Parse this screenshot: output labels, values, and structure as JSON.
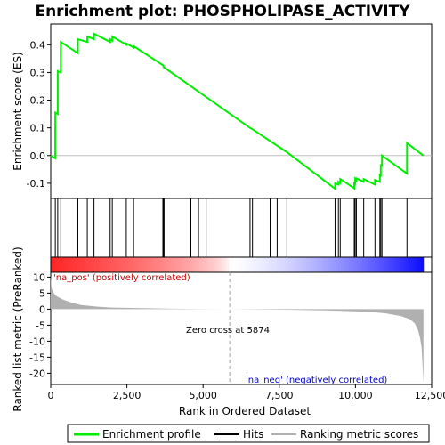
{
  "title": "Enrichment plot: PHOSPHOLIPASE_ACTIVITY",
  "colors": {
    "profile": "#00ee00",
    "hits": "#000000",
    "metric_fill": "#b0b0b0",
    "zero_line": "#a0a0a0",
    "pos_text": "#cc0000",
    "neg_text": "#0000cc",
    "heat_pos": "#ff0000",
    "heat_neg": "#0000ff"
  },
  "chart_data": [
    {
      "type": "line",
      "name": "enrichment-profile",
      "ylabel": "Enrichment score (ES)",
      "xlim": [
        0,
        12500
      ],
      "ylim": [
        -0.155,
        0.475
      ],
      "yticks": [
        -0.1,
        0.0,
        0.1,
        0.2,
        0.3,
        0.4
      ],
      "ytick_labels": [
        "-0.1",
        "0.0",
        "0.1",
        "0.2",
        "0.3",
        "0.4"
      ],
      "x": [
        0,
        150,
        150,
        230,
        230,
        330,
        330,
        890,
        890,
        1200,
        1200,
        1420,
        1420,
        1950,
        1950,
        2020,
        2020,
        2480,
        2480,
        2720,
        2720,
        3700,
        3700,
        6540,
        6540,
        6620,
        6620,
        7750,
        7750,
        9330,
        9330,
        9440,
        9440,
        9500,
        9500,
        9960,
        9960,
        9990,
        9990,
        10030,
        10030,
        10270,
        10270,
        10640,
        10640,
        10800,
        10800,
        10830,
        10830,
        10870,
        10870,
        11690,
        11690,
        12230
      ],
      "y": [
        0.0,
        -0.01,
        0.155,
        0.15,
        0.305,
        0.3,
        0.41,
        0.37,
        0.42,
        0.41,
        0.43,
        0.42,
        0.44,
        0.41,
        0.42,
        0.415,
        0.43,
        0.4,
        0.405,
        0.39,
        0.395,
        0.325,
        0.32,
        0.1,
        0.1,
        0.095,
        0.095,
        0.012,
        0.012,
        -0.12,
        -0.1,
        -0.105,
        -0.095,
        -0.1,
        -0.085,
        -0.118,
        -0.1,
        -0.102,
        -0.085,
        -0.09,
        -0.082,
        -0.095,
        -0.085,
        -0.105,
        -0.088,
        -0.095,
        -0.07,
        -0.072,
        -0.035,
        -0.037,
        0.0,
        -0.065,
        0.045,
        0.0
      ],
      "grid": false
    },
    {
      "type": "scatter",
      "name": "hits",
      "x": [
        150,
        230,
        330,
        890,
        1200,
        1420,
        1950,
        2020,
        2480,
        2720,
        3680,
        3700,
        3720,
        4600,
        4850,
        5100,
        6540,
        6620,
        7200,
        7430,
        7750,
        9330,
        9440,
        9500,
        9960,
        9990,
        10030,
        10270,
        10640,
        10800,
        10830,
        10870,
        11690
      ]
    },
    {
      "type": "area",
      "name": "ranked-list-metric",
      "ylabel": "Ranked list metric (PreRanked)",
      "xlabel": "Rank in Ordered Dataset",
      "xlim": [
        0,
        12500
      ],
      "ylim": [
        -23.5,
        11.5
      ],
      "xticks": [
        0,
        2500,
        5000,
        7500,
        10000,
        12500
      ],
      "xtick_labels": [
        "0",
        "2,500",
        "5,000",
        "7,500",
        "10,000",
        "12,500"
      ],
      "yticks": [
        -20,
        -15,
        -10,
        -5,
        0,
        5,
        10
      ],
      "ytick_labels": [
        "-20",
        "-15",
        "-10",
        "-5",
        "0",
        "5",
        "10"
      ],
      "x": [
        0,
        30,
        100,
        200,
        400,
        700,
        1000,
        1500,
        2000,
        3000,
        4000,
        5000,
        5874,
        7000,
        8000,
        9000,
        9500,
        10000,
        10500,
        11000,
        11500,
        11800,
        11950,
        12050,
        12120,
        12170,
        12200,
        12230
      ],
      "y": [
        10.5,
        6.5,
        5.0,
        4.0,
        3.0,
        2.0,
        1.3,
        0.8,
        0.5,
        0.3,
        0.15,
        0.05,
        0.0,
        -0.1,
        -0.2,
        -0.35,
        -0.5,
        -0.65,
        -0.85,
        -1.3,
        -2.2,
        -3.2,
        -4.5,
        -6.5,
        -9.0,
        -12.0,
        -17.0,
        -23.0
      ],
      "zero_cross_rank": 5874
    }
  ],
  "annotations": {
    "pos_label": "'na_pos' (positively correlated)",
    "neg_label": "'na_neg' (negatively correlated)",
    "zero_cross": "Zero cross at 5874"
  },
  "legend": {
    "items": [
      {
        "label": "Enrichment profile",
        "color": "#00ee00"
      },
      {
        "label": "Hits",
        "color": "#000000"
      },
      {
        "label": "Ranking metric scores",
        "color": "#b0b0b0"
      }
    ]
  }
}
